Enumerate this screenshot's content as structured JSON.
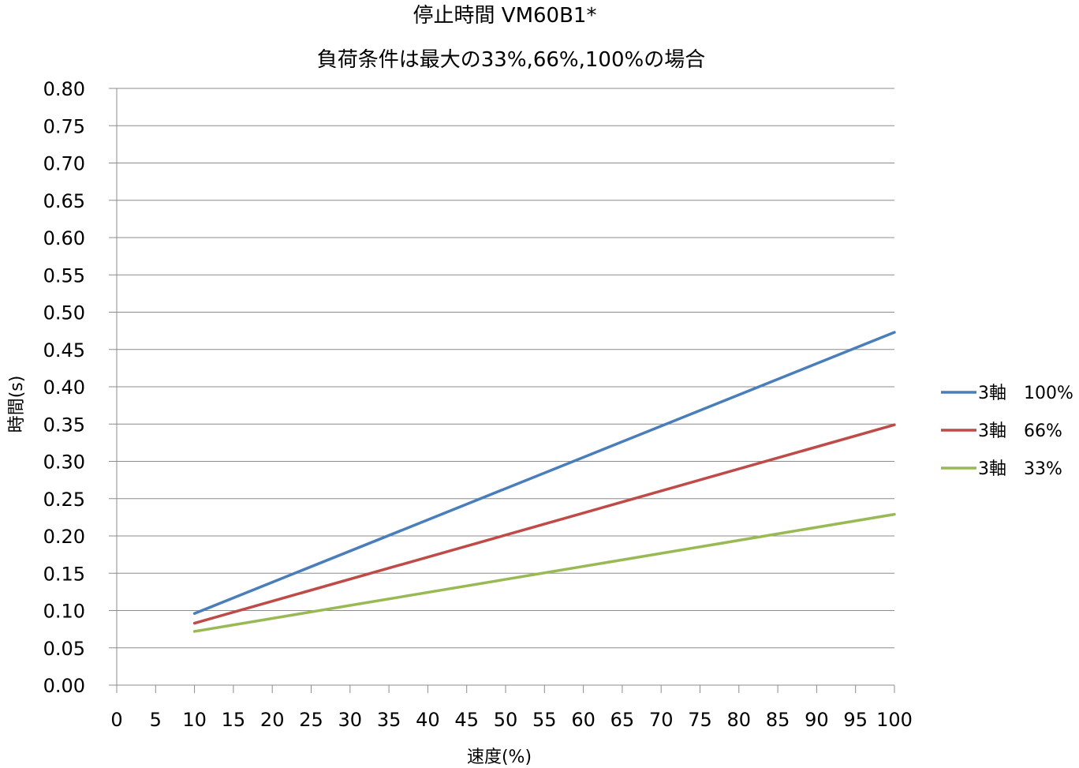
{
  "chart_data": {
    "type": "line",
    "title": "停止時間 VM60B1*",
    "subtitle": "負荷条件は最大の33%,66%,100%の場合",
    "xlabel": "速度(%)",
    "ylabel": "時間(s)",
    "xlim": [
      0,
      100
    ],
    "ylim": [
      0,
      0.8
    ],
    "x_ticks": [
      "0",
      "5",
      "10",
      "15",
      "20",
      "25",
      "30",
      "35",
      "40",
      "45",
      "50",
      "55",
      "60",
      "65",
      "70",
      "75",
      "80",
      "85",
      "90",
      "95",
      "100"
    ],
    "y_ticks": [
      "0.00",
      "0.05",
      "0.10",
      "0.15",
      "0.20",
      "0.25",
      "0.30",
      "0.35",
      "0.40",
      "0.45",
      "0.50",
      "0.55",
      "0.60",
      "0.65",
      "0.70",
      "0.75",
      "0.80"
    ],
    "grid": "horizontal",
    "legend_position": "right",
    "series": [
      {
        "name": "3軸　100%",
        "color": "#4a7ebb",
        "x": [
          10,
          100
        ],
        "y": [
          0.096,
          0.473
        ]
      },
      {
        "name": "3軸　66%",
        "color": "#be4b48",
        "x": [
          10,
          100
        ],
        "y": [
          0.083,
          0.349
        ]
      },
      {
        "name": "3軸　33%",
        "color": "#98b954",
        "x": [
          10,
          100
        ],
        "y": [
          0.072,
          0.229
        ]
      }
    ]
  }
}
